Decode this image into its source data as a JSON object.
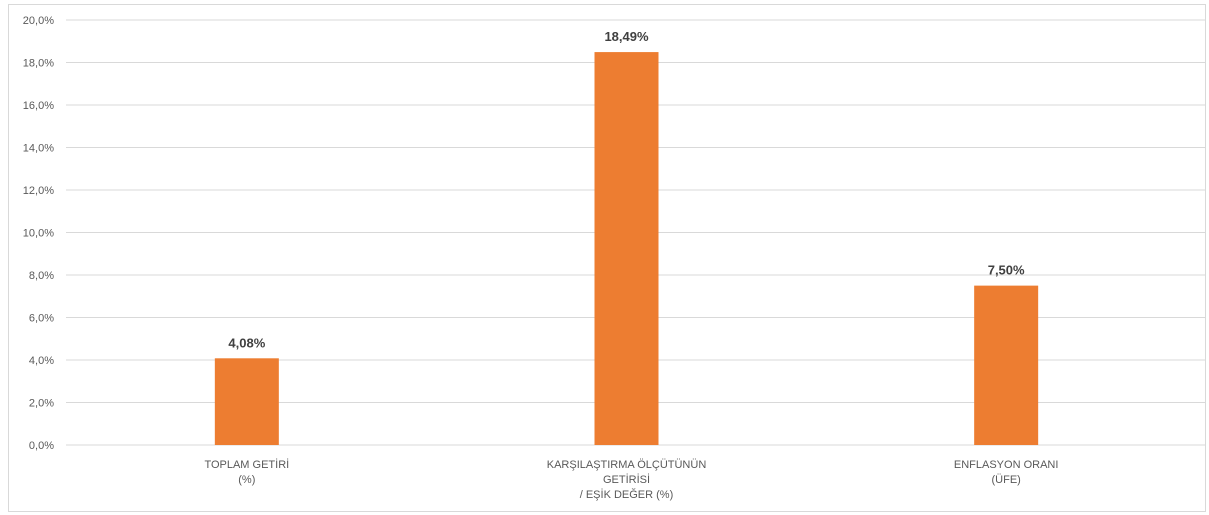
{
  "chart_data": {
    "type": "bar",
    "categories": [
      [
        "TOPLAM GETİRİ",
        "(%)"
      ],
      [
        "KARŞILAŞTIRMA ÖLÇÜTÜNÜN",
        "GETİRİSİ",
        "/ EŞİK DEĞER (%)"
      ],
      [
        "ENFLASYON ORANI",
        "(ÜFE)"
      ]
    ],
    "values": [
      4.08,
      18.49,
      7.5
    ],
    "data_labels": [
      "4,08%",
      "18,49%",
      "7,50%"
    ],
    "ylim": [
      0,
      20
    ],
    "yticks": [
      0,
      2,
      4,
      6,
      8,
      10,
      12,
      14,
      16,
      18,
      20
    ],
    "ytick_labels": [
      "0,0%",
      "2,0%",
      "4,0%",
      "6,0%",
      "8,0%",
      "10,0%",
      "12,0%",
      "14,0%",
      "16,0%",
      "18,0%",
      "20,0%"
    ],
    "grid": true,
    "bar_color": "#ED7D31",
    "grid_color": "#D9D9D9"
  }
}
